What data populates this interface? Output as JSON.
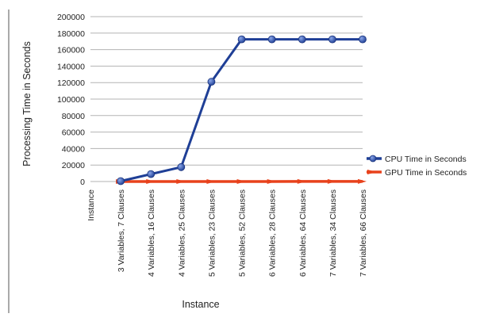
{
  "chart_data": {
    "type": "line",
    "title": "",
    "xlabel": "Instance",
    "ylabel": "Processing Time in Seconds",
    "ylim": [
      0,
      200000
    ],
    "yticks": [
      0,
      20000,
      40000,
      60000,
      80000,
      100000,
      120000,
      140000,
      160000,
      180000,
      200000
    ],
    "grid": "horizontal",
    "legend_position": "right",
    "categories": [
      "Instance",
      "3 Variables, 7 Clauses",
      "4 Variables, 16 Clauses",
      "4 Variables, 25 Clauses",
      "5 Variables, 23 Clauses",
      "5 Variables, 52 Clauses",
      "6 Variables, 28 Clauses",
      "6 Variables, 64 Clauses",
      "7 Variables, 34 Clauses",
      "7 Variables, 66 Clauses"
    ],
    "series": [
      {
        "name": "CPU Time in Seconds",
        "color": "#1f3f96",
        "values": [
          null,
          500,
          9000,
          17500,
          121000,
          172500,
          172500,
          172500,
          172500,
          172500
        ]
      },
      {
        "name": "GPU Time in Seconds",
        "color": "#e8421c",
        "values": [
          null,
          10,
          20,
          30,
          40,
          50,
          60,
          70,
          80,
          90
        ]
      }
    ]
  }
}
